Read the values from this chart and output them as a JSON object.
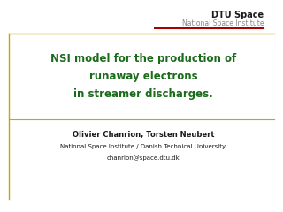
{
  "bg_color": "#ffffff",
  "border_color": "#c8a800",
  "title_text_line1": "NSI model for the production of",
  "title_text_line2": "runaway electrons",
  "title_text_line3": "in streamer discharges.",
  "title_color": "#1a6b1a",
  "dtu_label": "DTU Space",
  "dtu_sublabel": "National Space Institute",
  "dtu_label_color": "#1a1a1a",
  "dtu_sublabel_color": "#888888",
  "red_line_color": "#aa0000",
  "author_line1": "Olivier Chanrion, Torsten Neubert",
  "author_line2": "National Space Institute / Danish Technical University",
  "author_line3": "chanrion@space.dtu.dk",
  "author_color": "#1a1a1a",
  "separator_color": "#c8a800"
}
